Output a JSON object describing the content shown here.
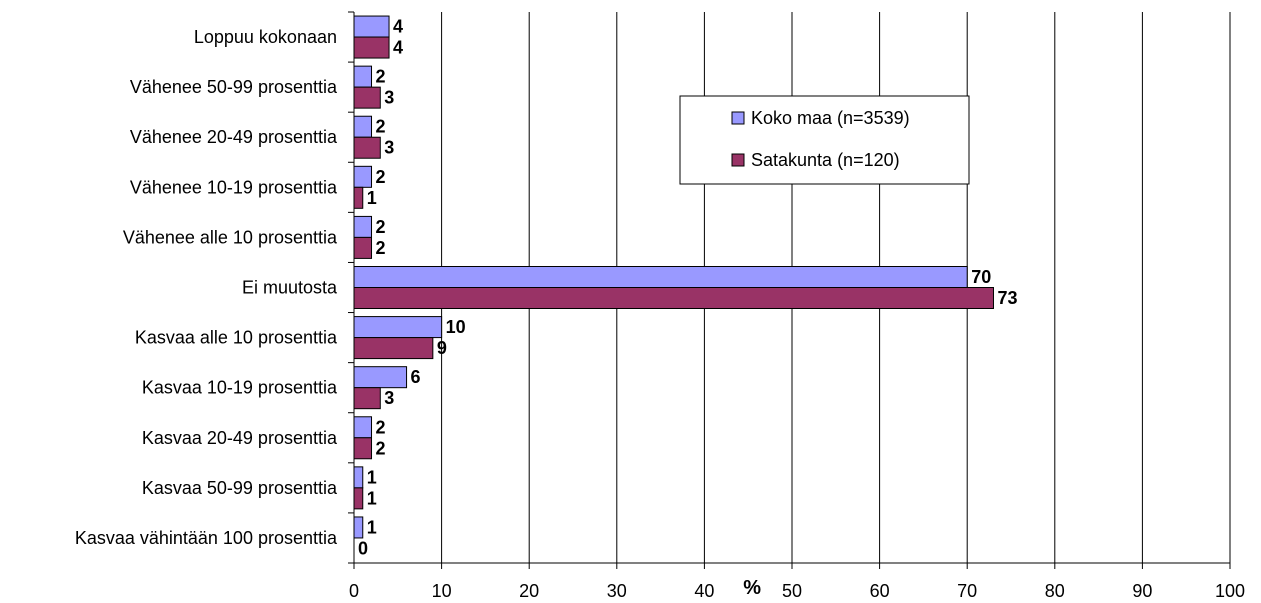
{
  "chart_data": {
    "type": "bar",
    "orientation": "horizontal",
    "categories": [
      "Loppuu kokonaan",
      "Vähenee 50-99 prosenttia",
      "Vähenee 20-49 prosenttia",
      "Vähenee 10-19 prosenttia",
      "Vähenee alle 10 prosenttia",
      "Ei muutosta",
      "Kasvaa alle 10 prosenttia",
      "Kasvaa 10-19 prosenttia",
      "Kasvaa 20-49 prosenttia",
      "Kasvaa 50-99 prosenttia",
      "Kasvaa vähintään 100 prosenttia"
    ],
    "series": [
      {
        "name": "Koko maa (n=3539)",
        "color": "#9999FF",
        "values": [
          4,
          2,
          2,
          2,
          2,
          70,
          10,
          6,
          2,
          1,
          1
        ]
      },
      {
        "name": "Satakunta (n=120)",
        "color": "#993366",
        "values": [
          4,
          3,
          3,
          1,
          2,
          73,
          9,
          3,
          2,
          1,
          0
        ]
      }
    ],
    "xlabel": "%",
    "ylabel": "",
    "xlim": [
      0,
      100
    ],
    "xticks": [
      0,
      10,
      20,
      30,
      40,
      50,
      60,
      70,
      80,
      90,
      100
    ],
    "grid": true,
    "legend_position": "top-right",
    "data_labels": true
  }
}
